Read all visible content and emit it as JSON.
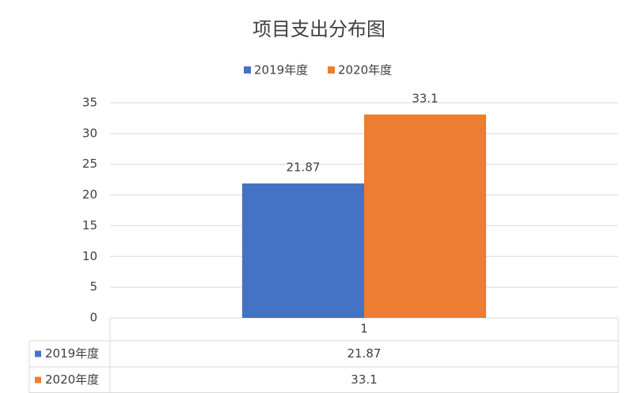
{
  "chart_data": {
    "type": "bar",
    "title": "项目支出分布图",
    "categories": [
      "1"
    ],
    "series": [
      {
        "name": "2019年度",
        "color": "#4472c4",
        "values": [
          21.87
        ]
      },
      {
        "name": "2020年度",
        "color": "#ed7d31",
        "values": [
          33.1
        ]
      }
    ],
    "ylim": [
      0,
      35
    ],
    "yticks": [
      0,
      5,
      10,
      15,
      20,
      25,
      30,
      35
    ],
    "grid": true,
    "legend": "top",
    "data_labels": true,
    "data_table": true
  }
}
